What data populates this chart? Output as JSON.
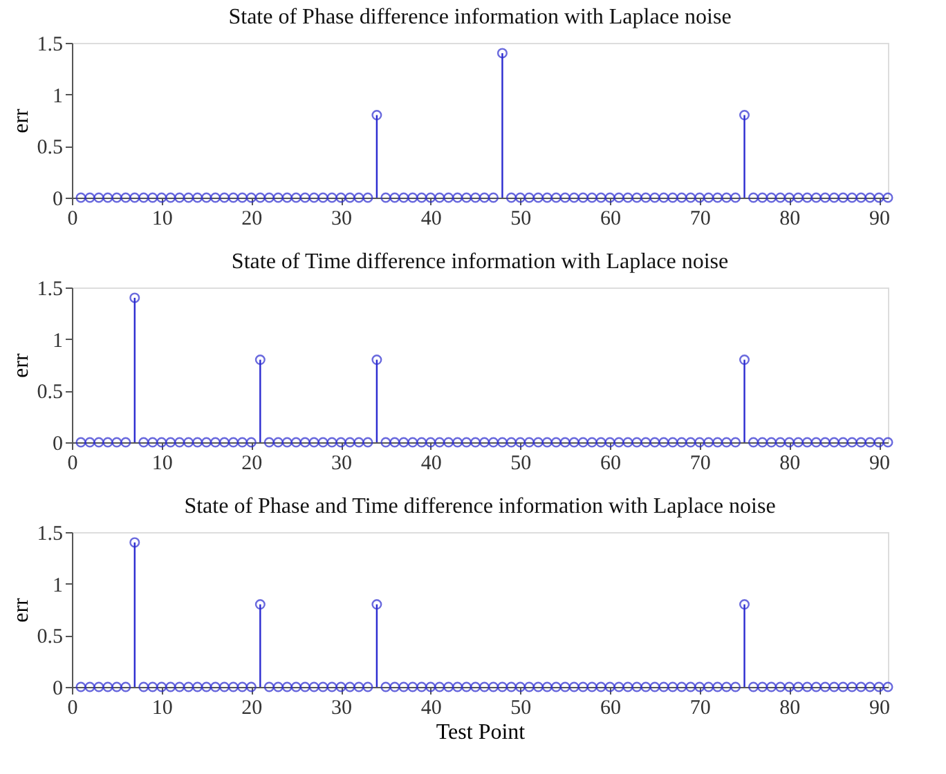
{
  "chart_data": [
    {
      "type": "lollipop",
      "title": "State of Phase difference information with Laplace noise",
      "ylabel": "err",
      "color": "#2a2ad0",
      "marker": "circle",
      "grid": false,
      "xlim": [
        0,
        91
      ],
      "xticks": [
        0,
        10,
        20,
        30,
        40,
        50,
        60,
        70,
        80,
        90
      ],
      "ylim": [
        0,
        1.5
      ],
      "yticks": [
        0,
        0.5,
        1,
        1.5
      ],
      "x": [
        1,
        2,
        3,
        4,
        5,
        6,
        7,
        8,
        9,
        10,
        11,
        12,
        13,
        14,
        15,
        16,
        17,
        18,
        19,
        20,
        21,
        22,
        23,
        24,
        25,
        26,
        27,
        28,
        29,
        30,
        31,
        32,
        33,
        34,
        35,
        36,
        37,
        38,
        39,
        40,
        41,
        42,
        43,
        44,
        45,
        46,
        47,
        48,
        49,
        50,
        51,
        52,
        53,
        54,
        55,
        56,
        57,
        58,
        59,
        60,
        61,
        62,
        63,
        64,
        65,
        66,
        67,
        68,
        69,
        70,
        71,
        72,
        73,
        74,
        75,
        76,
        77,
        78,
        79,
        80,
        81,
        82,
        83,
        84,
        85,
        86,
        87,
        88,
        89,
        90,
        91
      ],
      "values": [
        0,
        0,
        0,
        0,
        0,
        0,
        0,
        0,
        0,
        0,
        0,
        0,
        0,
        0,
        0,
        0,
        0,
        0,
        0,
        0,
        0,
        0,
        0,
        0,
        0,
        0,
        0,
        0,
        0,
        0,
        0,
        0,
        0,
        0.8,
        0,
        0,
        0,
        0,
        0,
        0,
        0,
        0,
        0,
        0,
        0,
        0,
        0,
        1.4,
        0,
        0,
        0,
        0,
        0,
        0,
        0,
        0,
        0,
        0,
        0,
        0,
        0,
        0,
        0,
        0,
        0,
        0,
        0,
        0,
        0,
        0,
        0,
        0,
        0,
        0,
        0.8,
        0,
        0,
        0,
        0,
        0,
        0,
        0,
        0,
        0,
        0,
        0,
        0,
        0,
        0,
        0,
        0
      ]
    },
    {
      "type": "lollipop",
      "title": "State of Time difference information with Laplace noise",
      "ylabel": "err",
      "color": "#2a2ad0",
      "marker": "circle",
      "grid": false,
      "xlim": [
        0,
        91
      ],
      "xticks": [
        0,
        10,
        20,
        30,
        40,
        50,
        60,
        70,
        80,
        90
      ],
      "ylim": [
        0,
        1.5
      ],
      "yticks": [
        0,
        0.5,
        1,
        1.5
      ],
      "x": [
        1,
        2,
        3,
        4,
        5,
        6,
        7,
        8,
        9,
        10,
        11,
        12,
        13,
        14,
        15,
        16,
        17,
        18,
        19,
        20,
        21,
        22,
        23,
        24,
        25,
        26,
        27,
        28,
        29,
        30,
        31,
        32,
        33,
        34,
        35,
        36,
        37,
        38,
        39,
        40,
        41,
        42,
        43,
        44,
        45,
        46,
        47,
        48,
        49,
        50,
        51,
        52,
        53,
        54,
        55,
        56,
        57,
        58,
        59,
        60,
        61,
        62,
        63,
        64,
        65,
        66,
        67,
        68,
        69,
        70,
        71,
        72,
        73,
        74,
        75,
        76,
        77,
        78,
        79,
        80,
        81,
        82,
        83,
        84,
        85,
        86,
        87,
        88,
        89,
        90,
        91
      ],
      "values": [
        0,
        0,
        0,
        0,
        0,
        0,
        1.4,
        0,
        0,
        0,
        0,
        0,
        0,
        0,
        0,
        0,
        0,
        0,
        0,
        0,
        0.8,
        0,
        0,
        0,
        0,
        0,
        0,
        0,
        0,
        0,
        0,
        0,
        0,
        0.8,
        0,
        0,
        0,
        0,
        0,
        0,
        0,
        0,
        0,
        0,
        0,
        0,
        0,
        0,
        0,
        0,
        0,
        0,
        0,
        0,
        0,
        0,
        0,
        0,
        0,
        0,
        0,
        0,
        0,
        0,
        0,
        0,
        0,
        0,
        0,
        0,
        0,
        0,
        0,
        0,
        0.8,
        0,
        0,
        0,
        0,
        0,
        0,
        0,
        0,
        0,
        0,
        0,
        0,
        0,
        0,
        0,
        0
      ]
    },
    {
      "type": "lollipop",
      "title": "State of Phase and Time difference information with Laplace noise",
      "xlabel": "Test Point",
      "ylabel": "err",
      "color": "#2a2ad0",
      "marker": "circle",
      "grid": false,
      "xlim": [
        0,
        91
      ],
      "xticks": [
        0,
        10,
        20,
        30,
        40,
        50,
        60,
        70,
        80,
        90
      ],
      "ylim": [
        0,
        1.5
      ],
      "yticks": [
        0,
        0.5,
        1,
        1.5
      ],
      "x": [
        1,
        2,
        3,
        4,
        5,
        6,
        7,
        8,
        9,
        10,
        11,
        12,
        13,
        14,
        15,
        16,
        17,
        18,
        19,
        20,
        21,
        22,
        23,
        24,
        25,
        26,
        27,
        28,
        29,
        30,
        31,
        32,
        33,
        34,
        35,
        36,
        37,
        38,
        39,
        40,
        41,
        42,
        43,
        44,
        45,
        46,
        47,
        48,
        49,
        50,
        51,
        52,
        53,
        54,
        55,
        56,
        57,
        58,
        59,
        60,
        61,
        62,
        63,
        64,
        65,
        66,
        67,
        68,
        69,
        70,
        71,
        72,
        73,
        74,
        75,
        76,
        77,
        78,
        79,
        80,
        81,
        82,
        83,
        84,
        85,
        86,
        87,
        88,
        89,
        90,
        91
      ],
      "values": [
        0,
        0,
        0,
        0,
        0,
        0,
        1.4,
        0,
        0,
        0,
        0,
        0,
        0,
        0,
        0,
        0,
        0,
        0,
        0,
        0,
        0.8,
        0,
        0,
        0,
        0,
        0,
        0,
        0,
        0,
        0,
        0,
        0,
        0,
        0.8,
        0,
        0,
        0,
        0,
        0,
        0,
        0,
        0,
        0,
        0,
        0,
        0,
        0,
        0,
        0,
        0,
        0,
        0,
        0,
        0,
        0,
        0,
        0,
        0,
        0,
        0,
        0,
        0,
        0,
        0,
        0,
        0,
        0,
        0,
        0,
        0,
        0,
        0,
        0,
        0,
        0.8,
        0,
        0,
        0,
        0,
        0,
        0,
        0,
        0,
        0,
        0,
        0,
        0,
        0,
        0,
        0,
        0
      ]
    }
  ]
}
